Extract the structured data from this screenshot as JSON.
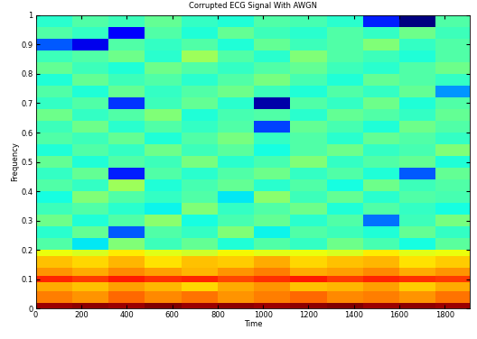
{
  "chart_data": {
    "type": "heatmap",
    "title": "Corrupted ECG Signal With AWGN",
    "x_label": "Time",
    "y_label": "Frequency",
    "xlim": [
      0,
      1910
    ],
    "xticks": [
      0,
      200,
      400,
      600,
      800,
      1000,
      1200,
      1400,
      1600,
      1800
    ],
    "ylim": [
      0,
      1
    ],
    "yticks": [
      0,
      0.1,
      0.2,
      0.3,
      0.4,
      0.5,
      0.6,
      0.7,
      0.8,
      0.9,
      1
    ],
    "time_edges": [
      0,
      160,
      320,
      480,
      640,
      800,
      960,
      1120,
      1280,
      1440,
      1600,
      1760,
      1920
    ],
    "frequency_edges": [
      0,
      0.02,
      0.06,
      0.09,
      0.11,
      0.14,
      0.18,
      0.2,
      0.24,
      0.28,
      0.32,
      0.36,
      0.4,
      0.44,
      0.48,
      0.52,
      0.56,
      0.6,
      0.64,
      0.68,
      0.72,
      0.76,
      0.8,
      0.84,
      0.88,
      0.92,
      0.96,
      1.0
    ],
    "cells": [
      [
        0.95,
        0.96,
        0.95,
        0.97,
        0.95,
        0.96,
        0.95,
        0.96,
        0.97,
        0.95,
        0.96,
        0.95
      ],
      [
        0.78,
        0.76,
        0.8,
        0.77,
        0.79,
        0.76,
        0.78,
        0.8,
        0.77,
        0.78,
        0.76,
        0.79
      ],
      [
        0.74,
        0.72,
        0.75,
        0.73,
        0.7,
        0.74,
        0.76,
        0.72,
        0.73,
        0.75,
        0.71,
        0.74
      ],
      [
        0.86,
        0.84,
        0.87,
        0.85,
        0.86,
        0.83,
        0.85,
        0.87,
        0.84,
        0.86,
        0.85,
        0.84
      ],
      [
        0.76,
        0.74,
        0.77,
        0.75,
        0.73,
        0.76,
        0.78,
        0.74,
        0.75,
        0.77,
        0.74,
        0.76
      ],
      [
        0.72,
        0.7,
        0.73,
        0.69,
        0.72,
        0.71,
        0.74,
        0.7,
        0.72,
        0.73,
        0.69,
        0.71
      ],
      [
        0.66,
        0.64,
        0.68,
        0.65,
        0.63,
        0.67,
        0.65,
        0.66,
        0.64,
        0.68,
        0.65,
        0.66
      ],
      [
        0.5,
        0.42,
        0.55,
        0.48,
        0.52,
        0.45,
        0.5,
        0.47,
        0.53,
        0.49,
        0.44,
        0.51
      ],
      [
        0.46,
        0.52,
        0.3,
        0.5,
        0.47,
        0.55,
        0.43,
        0.5,
        0.48,
        0.45,
        0.52,
        0.47
      ],
      [
        0.53,
        0.45,
        0.5,
        0.56,
        0.44,
        0.49,
        0.52,
        0.46,
        0.5,
        0.32,
        0.48,
        0.54
      ],
      [
        0.48,
        0.5,
        0.46,
        0.43,
        0.55,
        0.47,
        0.5,
        0.53,
        0.45,
        0.5,
        0.47,
        0.44
      ],
      [
        0.44,
        0.55,
        0.5,
        0.47,
        0.5,
        0.42,
        0.56,
        0.48,
        0.52,
        0.46,
        0.5,
        0.49
      ],
      [
        0.5,
        0.47,
        0.58,
        0.45,
        0.49,
        0.52,
        0.46,
        0.5,
        0.44,
        0.53,
        0.48,
        0.5
      ],
      [
        0.47,
        0.52,
        0.25,
        0.5,
        0.46,
        0.5,
        0.53,
        0.47,
        0.5,
        0.45,
        0.3,
        0.52
      ],
      [
        0.52,
        0.45,
        0.5,
        0.48,
        0.54,
        0.46,
        0.49,
        0.55,
        0.47,
        0.5,
        0.52,
        0.45
      ],
      [
        0.45,
        0.5,
        0.47,
        0.53,
        0.48,
        0.51,
        0.44,
        0.5,
        0.53,
        0.47,
        0.49,
        0.55
      ],
      [
        0.5,
        0.48,
        0.52,
        0.45,
        0.5,
        0.54,
        0.47,
        0.5,
        0.46,
        0.52,
        0.5,
        0.47
      ],
      [
        0.48,
        0.53,
        0.46,
        0.5,
        0.47,
        0.5,
        0.28,
        0.52,
        0.49,
        0.45,
        0.53,
        0.5
      ],
      [
        0.53,
        0.47,
        0.5,
        0.55,
        0.45,
        0.49,
        0.5,
        0.46,
        0.52,
        0.5,
        0.47,
        0.52
      ],
      [
        0.47,
        0.5,
        0.27,
        0.48,
        0.52,
        0.46,
        0.15,
        0.5,
        0.47,
        0.53,
        0.45,
        0.5
      ],
      [
        0.5,
        0.45,
        0.52,
        0.47,
        0.5,
        0.53,
        0.48,
        0.45,
        0.5,
        0.47,
        0.52,
        0.35
      ],
      [
        0.45,
        0.52,
        0.48,
        0.5,
        0.46,
        0.5,
        0.54,
        0.49,
        0.45,
        0.52,
        0.5,
        0.47
      ],
      [
        0.52,
        0.48,
        0.45,
        0.53,
        0.5,
        0.47,
        0.5,
        0.52,
        0.48,
        0.46,
        0.5,
        0.53
      ],
      [
        0.48,
        0.5,
        0.53,
        0.46,
        0.58,
        0.5,
        0.46,
        0.55,
        0.5,
        0.48,
        0.45,
        0.5
      ],
      [
        0.3,
        0.2,
        0.5,
        0.47,
        0.5,
        0.45,
        0.52,
        0.48,
        0.5,
        0.55,
        0.47,
        0.5
      ],
      [
        0.5,
        0.47,
        0.22,
        0.5,
        0.45,
        0.52,
        0.48,
        0.46,
        0.5,
        0.47,
        0.53,
        0.48
      ],
      [
        0.46,
        0.5,
        0.48,
        0.52,
        0.47,
        0.45,
        0.5,
        0.49,
        0.46,
        0.25,
        0.12,
        0.5
      ]
    ]
  }
}
